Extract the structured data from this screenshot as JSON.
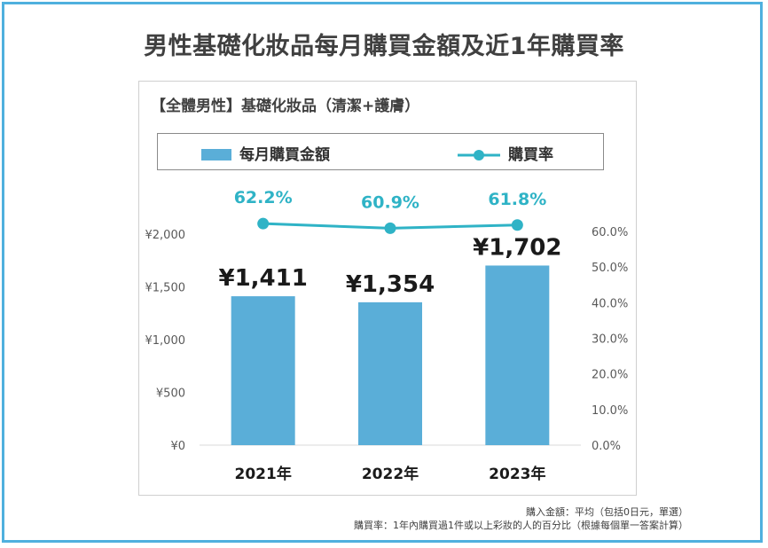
{
  "title": "男性基礎化妝品每月購買金額及近1年購買率",
  "subtitle": "【全體男性】基礎化妝品（清潔+護膚）",
  "colors": {
    "bar": "#5aaed8",
    "line": "#2fb3c6",
    "frame": "#4fb0de"
  },
  "chart_data": {
    "type": "bar",
    "categories": [
      "2021年",
      "2022年",
      "2023年"
    ],
    "series": [
      {
        "name": "每月購買金額",
        "type": "bar",
        "axis": "left",
        "values": [
          1411,
          1354,
          1702
        ],
        "labels": [
          "¥1,411",
          "¥1,354",
          "¥1,702"
        ]
      },
      {
        "name": "購買率",
        "type": "line",
        "axis": "right",
        "values": [
          62.2,
          60.9,
          61.8
        ],
        "labels": [
          "62.2%",
          "60.9%",
          "61.8%"
        ]
      }
    ],
    "y_left": {
      "ylim": [
        0,
        2000
      ],
      "ticks": [
        0,
        500,
        1000,
        1500,
        2000
      ],
      "tick_labels": [
        "¥0",
        "¥500",
        "¥1,000",
        "¥1,500",
        "¥2,000"
      ]
    },
    "y_right": {
      "ylim": [
        0,
        60
      ],
      "ticks": [
        0,
        10,
        20,
        30,
        40,
        50,
        60
      ],
      "tick_labels": [
        "0.0%",
        "10.0%",
        "20.0%",
        "30.0%",
        "40.0%",
        "50.0%",
        "60.0%"
      ]
    },
    "legend": {
      "position": "top",
      "entries": [
        "每月購買金額",
        "購買率"
      ]
    },
    "grid": false
  },
  "notes": [
    "購入金額：平均（包括0日元，單選）",
    "購買率：1年內購買過1件或以上彩妝的人的百分比（根據每個單一答案計算）"
  ]
}
